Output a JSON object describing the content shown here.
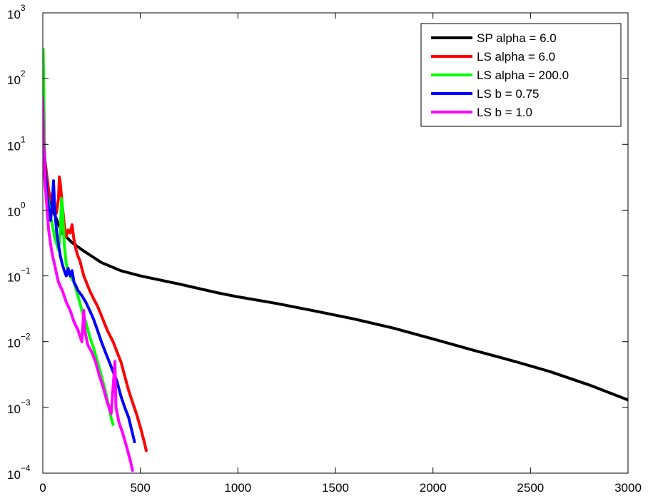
{
  "chart_data": {
    "type": "line",
    "title": "",
    "xlabel": "",
    "ylabel": "",
    "x_scale": "linear",
    "y_scale": "log",
    "xlim": [
      0,
      3000
    ],
    "ylim": [
      0.0001,
      1000
    ],
    "grid": false,
    "legend_position": "top-right",
    "x_ticks": [
      {
        "value": 0,
        "label": "0"
      },
      {
        "value": 500,
        "label": "500"
      },
      {
        "value": 1000,
        "label": "1000"
      },
      {
        "value": 1500,
        "label": "1500"
      },
      {
        "value": 2000,
        "label": "2000"
      },
      {
        "value": 2500,
        "label": "2500"
      },
      {
        "value": 3000,
        "label": "3000"
      }
    ],
    "y_ticks": [
      {
        "value": 0.0001,
        "base": "10",
        "exp": "−4"
      },
      {
        "value": 0.001,
        "base": "10",
        "exp": "−3"
      },
      {
        "value": 0.01,
        "base": "10",
        "exp": "−2"
      },
      {
        "value": 0.1,
        "base": "10",
        "exp": "−1"
      },
      {
        "value": 1,
        "base": "10",
        "exp": "0"
      },
      {
        "value": 10,
        "base": "10",
        "exp": "1"
      },
      {
        "value": 100,
        "base": "10",
        "exp": "2"
      },
      {
        "value": 1000,
        "base": "10",
        "exp": "3"
      }
    ],
    "series": [
      {
        "name": "SP alpha = 6.0",
        "color": "#000000",
        "points": [
          [
            0,
            30
          ],
          [
            10,
            6
          ],
          [
            25,
            2
          ],
          [
            50,
            1
          ],
          [
            100,
            0.45
          ],
          [
            150,
            0.32
          ],
          [
            200,
            0.25
          ],
          [
            300,
            0.16
          ],
          [
            400,
            0.12
          ],
          [
            500,
            0.1
          ],
          [
            700,
            0.075
          ],
          [
            900,
            0.055
          ],
          [
            1000,
            0.048
          ],
          [
            1200,
            0.038
          ],
          [
            1400,
            0.029
          ],
          [
            1600,
            0.022
          ],
          [
            1800,
            0.016
          ],
          [
            2000,
            0.011
          ],
          [
            2200,
            0.0075
          ],
          [
            2400,
            0.0052
          ],
          [
            2600,
            0.0035
          ],
          [
            2800,
            0.0022
          ],
          [
            3000,
            0.0013
          ]
        ]
      },
      {
        "name": "LS alpha = 6.0",
        "color": "#ff0000",
        "points": [
          [
            0,
            30
          ],
          [
            10,
            6
          ],
          [
            30,
            2
          ],
          [
            50,
            1.2
          ],
          [
            70,
            0.9
          ],
          [
            80,
            1.5
          ],
          [
            85,
            3.2
          ],
          [
            90,
            2.5
          ],
          [
            100,
            1.2
          ],
          [
            110,
            0.6
          ],
          [
            120,
            0.4
          ],
          [
            130,
            0.5
          ],
          [
            140,
            0.45
          ],
          [
            150,
            0.6
          ],
          [
            160,
            0.35
          ],
          [
            170,
            0.25
          ],
          [
            180,
            0.2
          ],
          [
            190,
            0.17
          ],
          [
            200,
            0.13
          ],
          [
            210,
            0.1
          ],
          [
            220,
            0.085
          ],
          [
            240,
            0.06
          ],
          [
            260,
            0.045
          ],
          [
            280,
            0.035
          ],
          [
            300,
            0.025
          ],
          [
            330,
            0.015
          ],
          [
            360,
            0.01
          ],
          [
            380,
            0.007
          ],
          [
            400,
            0.005
          ],
          [
            420,
            0.003
          ],
          [
            440,
            0.0018
          ],
          [
            460,
            0.0012
          ],
          [
            480,
            0.0008
          ],
          [
            500,
            0.0005
          ],
          [
            520,
            0.0003
          ],
          [
            530,
            0.00022
          ]
        ]
      },
      {
        "name": "LS alpha = 200.0",
        "color": "#00ff00",
        "points": [
          [
            0,
            60
          ],
          [
            2,
            280
          ],
          [
            5,
            60
          ],
          [
            10,
            5
          ],
          [
            20,
            2
          ],
          [
            40,
            0.8
          ],
          [
            60,
            0.4
          ],
          [
            80,
            0.25
          ],
          [
            90,
            0.45
          ],
          [
            95,
            1.5
          ],
          [
            100,
            1.2
          ],
          [
            110,
            0.3
          ],
          [
            120,
            0.15
          ],
          [
            140,
            0.1
          ],
          [
            160,
            0.08
          ],
          [
            180,
            0.05
          ],
          [
            200,
            0.03
          ],
          [
            220,
            0.02
          ],
          [
            240,
            0.012
          ],
          [
            260,
            0.008
          ],
          [
            280,
            0.005
          ],
          [
            300,
            0.003
          ],
          [
            320,
            0.0018
          ],
          [
            340,
            0.001
          ],
          [
            350,
            0.0007
          ],
          [
            360,
            0.00055
          ]
        ]
      },
      {
        "name": "LS b = 0.75",
        "color": "#0000ff",
        "points": [
          [
            0,
            20
          ],
          [
            10,
            5
          ],
          [
            20,
            2
          ],
          [
            30,
            1
          ],
          [
            40,
            0.7
          ],
          [
            50,
            1.5
          ],
          [
            55,
            2.8
          ],
          [
            60,
            1.2
          ],
          [
            70,
            0.5
          ],
          [
            80,
            0.3
          ],
          [
            90,
            0.2
          ],
          [
            100,
            0.15
          ],
          [
            110,
            0.12
          ],
          [
            120,
            0.1
          ],
          [
            130,
            0.13
          ],
          [
            140,
            0.1
          ],
          [
            150,
            0.12
          ],
          [
            160,
            0.08
          ],
          [
            170,
            0.07
          ],
          [
            180,
            0.06
          ],
          [
            200,
            0.05
          ],
          [
            220,
            0.04
          ],
          [
            240,
            0.03
          ],
          [
            260,
            0.022
          ],
          [
            280,
            0.015
          ],
          [
            300,
            0.01
          ],
          [
            320,
            0.007
          ],
          [
            340,
            0.005
          ],
          [
            360,
            0.0035
          ],
          [
            380,
            0.0025
          ],
          [
            400,
            0.0015
          ],
          [
            420,
            0.001
          ],
          [
            440,
            0.0007
          ],
          [
            460,
            0.0004
          ],
          [
            470,
            0.0003
          ]
        ]
      },
      {
        "name": "LS b = 1.0",
        "color": "#ff00ff",
        "points": [
          [
            0,
            50
          ],
          [
            5,
            10
          ],
          [
            10,
            3
          ],
          [
            20,
            1.2
          ],
          [
            30,
            0.5
          ],
          [
            40,
            0.3
          ],
          [
            50,
            0.2
          ],
          [
            60,
            0.15
          ],
          [
            80,
            0.08
          ],
          [
            100,
            0.06
          ],
          [
            120,
            0.04
          ],
          [
            140,
            0.03
          ],
          [
            160,
            0.02
          ],
          [
            180,
            0.015
          ],
          [
            200,
            0.01
          ],
          [
            210,
            0.03
          ],
          [
            215,
            0.015
          ],
          [
            230,
            0.009
          ],
          [
            250,
            0.007
          ],
          [
            270,
            0.005
          ],
          [
            290,
            0.003
          ],
          [
            310,
            0.002
          ],
          [
            330,
            0.0012
          ],
          [
            350,
            0.0008
          ],
          [
            370,
            0.005
          ],
          [
            375,
            0.001
          ],
          [
            390,
            0.0006
          ],
          [
            410,
            0.0004
          ],
          [
            430,
            0.00025
          ],
          [
            450,
            0.00015
          ],
          [
            460,
            0.00011
          ]
        ]
      }
    ]
  }
}
